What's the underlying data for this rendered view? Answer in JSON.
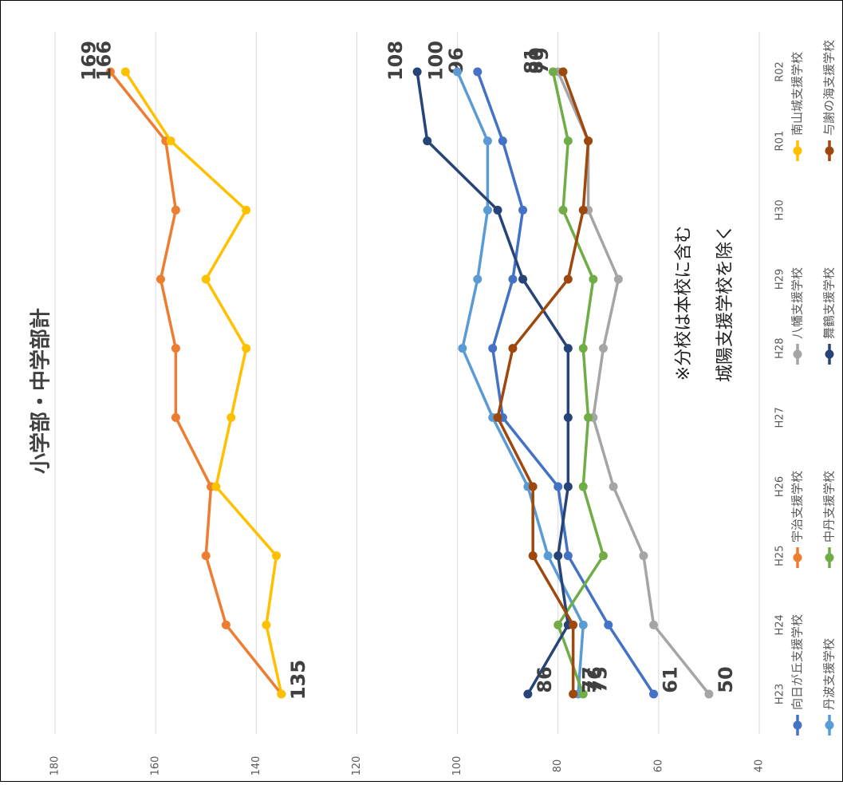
{
  "chart_data": {
    "type": "line",
    "title": "小学部・中学部計",
    "annotations": [
      "※分校は本校に含む",
      "城陽支援学校を除く"
    ],
    "categories": [
      "H23",
      "H24",
      "H25",
      "H26",
      "H27",
      "H28",
      "H29",
      "H30",
      "R01",
      "R02"
    ],
    "ylim": [
      40,
      180
    ],
    "yticks": [
      40,
      60,
      80,
      100,
      120,
      140,
      160,
      180
    ],
    "grid": true,
    "series": [
      {
        "name": "向日が丘支援学校",
        "color": "#4472c4",
        "values": [
          61,
          70,
          78,
          80,
          91,
          93,
          89,
          87,
          91,
          96
        ]
      },
      {
        "name": "宇治支援学校",
        "color": "#ed7d31",
        "values": [
          135,
          146,
          150,
          149,
          156,
          156,
          159,
          156,
          158,
          169
        ]
      },
      {
        "name": "八幡支援学校",
        "color": "#a5a5a5",
        "values": [
          50,
          61,
          63,
          69,
          73,
          71,
          68,
          74,
          74,
          80
        ]
      },
      {
        "name": "南山城支援学校",
        "color": "#ffc000",
        "values": [
          135,
          138,
          136,
          148,
          145,
          142,
          150,
          142,
          157,
          166
        ]
      },
      {
        "name": "丹波支援学校",
        "color": "#5b9bd5",
        "values": [
          76,
          75,
          82,
          86,
          93,
          99,
          96,
          94,
          94,
          100
        ]
      },
      {
        "name": "中丹支援学校",
        "color": "#70ad47",
        "values": [
          75,
          80,
          71,
          75,
          74,
          75,
          73,
          79,
          78,
          81
        ]
      },
      {
        "name": "舞鶴支援学校",
        "color": "#264478",
        "values": [
          86,
          78,
          80,
          78,
          78,
          78,
          87,
          92,
          106,
          108
        ]
      },
      {
        "name": "与謝の海支援学校",
        "color": "#9e480e",
        "values": [
          77,
          77,
          85,
          85,
          92,
          89,
          78,
          75,
          74,
          79
        ]
      }
    ]
  }
}
